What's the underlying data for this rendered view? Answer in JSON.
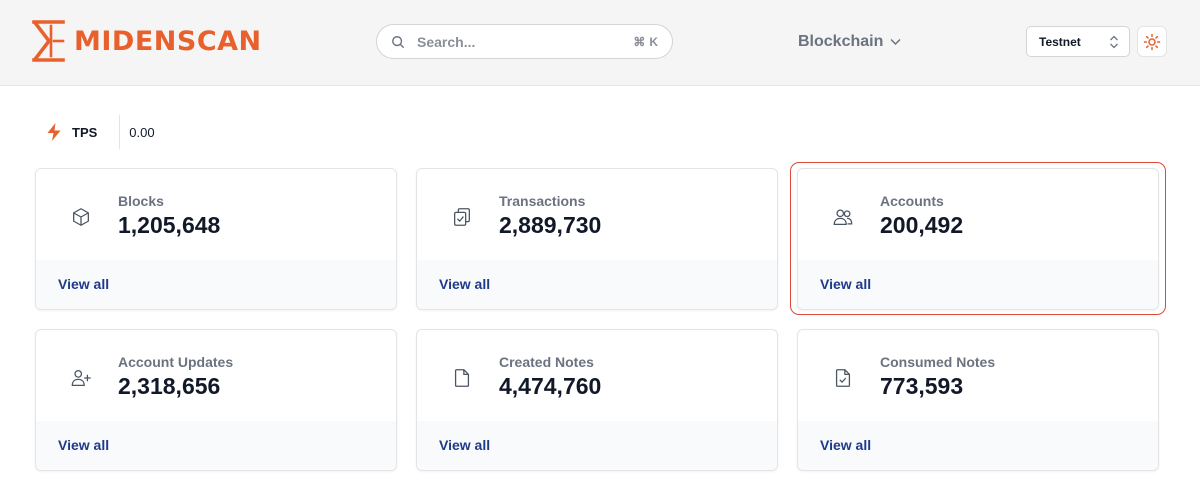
{
  "header": {
    "logo_text": "MIDENSCAN",
    "search": {
      "placeholder": "Search...",
      "shortcut_symbol": "⌘",
      "shortcut_key": "K"
    },
    "nav_menu_label": "Blockchain",
    "network": {
      "selected": "Testnet"
    }
  },
  "tps": {
    "label": "TPS",
    "value": "0.00"
  },
  "cards": [
    {
      "label": "Blocks",
      "value": "1,205,648",
      "link": "View all",
      "icon": "cube-icon"
    },
    {
      "label": "Transactions",
      "value": "2,889,730",
      "link": "View all",
      "icon": "clipboard-check-icon"
    },
    {
      "label": "Accounts",
      "value": "200,492",
      "link": "View all",
      "icon": "users-icon"
    },
    {
      "label": "Account Updates",
      "value": "2,318,656",
      "link": "View all",
      "icon": "user-plus-icon"
    },
    {
      "label": "Created Notes",
      "value": "4,474,760",
      "link": "View all",
      "icon": "file-icon"
    },
    {
      "label": "Consumed Notes",
      "value": "773,593",
      "link": "View all",
      "icon": "file-check-icon"
    }
  ],
  "colors": {
    "brand": "#e8612c",
    "link": "#1e3a8a",
    "highlight": "#dc4a3a"
  }
}
